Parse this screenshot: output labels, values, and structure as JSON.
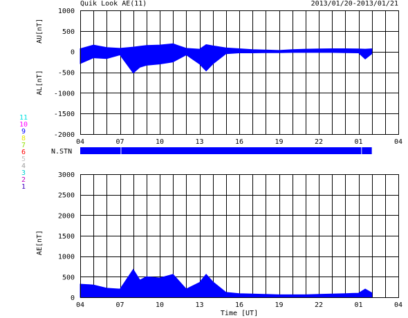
{
  "header": {
    "title": "Quik Look AE(11)",
    "date_range": "2013/01/20-2013/01/21"
  },
  "colors": {
    "data": "#0000ff",
    "frame": "#000000",
    "background": "#ffffff"
  },
  "station_legend": [
    {
      "label": "11",
      "color": "#00e0e0"
    },
    {
      "label": "10",
      "color": "#ff00ff"
    },
    {
      "label": "9",
      "color": "#0000ff"
    },
    {
      "label": "8",
      "color": "#e8e800"
    },
    {
      "label": "7",
      "color": "#90e000"
    },
    {
      "label": "6",
      "color": "#ff0000"
    },
    {
      "label": "5",
      "color": "#c0c0c0"
    },
    {
      "label": "4",
      "color": "#a0a0a0"
    },
    {
      "label": "3",
      "color": "#00d0d0"
    },
    {
      "label": "2",
      "color": "#c000c0"
    },
    {
      "label": "1",
      "color": "#4000c0"
    }
  ],
  "chart_data": [
    {
      "type": "area",
      "name": "AU / AL",
      "ylabel_upper": "AU[nT]",
      "ylabel_lower": "AL[nT]",
      "ylim": [
        -2000,
        1000
      ],
      "yticks": [
        1000,
        500,
        0,
        -500,
        -1000,
        -1500,
        -2000
      ],
      "x_domain_hours": [
        4,
        28
      ],
      "xticks": [
        "04",
        "07",
        "10",
        "13",
        "16",
        "19",
        "22",
        "01",
        "04"
      ],
      "grid": true,
      "x": [
        4,
        5,
        6,
        7,
        8,
        8.5,
        9,
        10,
        11,
        12,
        13,
        13.5,
        14,
        15,
        16,
        17,
        18,
        19,
        20,
        21,
        22,
        23,
        24,
        25,
        25.5,
        26
      ],
      "series": [
        {
          "name": "AU",
          "values": [
            70,
            160,
            100,
            80,
            110,
            130,
            150,
            160,
            190,
            80,
            60,
            170,
            140,
            90,
            70,
            50,
            40,
            30,
            50,
            60,
            65,
            70,
            70,
            65,
            60,
            70
          ]
        },
        {
          "name": "AL",
          "values": [
            -290,
            -150,
            -170,
            -80,
            -520,
            -380,
            -330,
            -300,
            -250,
            -80,
            -300,
            -470,
            -300,
            -50,
            -30,
            -30,
            -25,
            -25,
            -20,
            -20,
            -20,
            -20,
            -25,
            -30,
            -180,
            -50
          ]
        }
      ]
    },
    {
      "type": "bar",
      "name": "N.STN",
      "label": "N.STN",
      "x_domain_hours": [
        4,
        28
      ],
      "segments": [
        [
          4,
          7.05
        ],
        [
          7.1,
          25.2
        ],
        [
          25.25,
          26
        ]
      ]
    },
    {
      "type": "area",
      "name": "AE",
      "ylabel": "AE[nT]",
      "xlabel": "Time [UT]",
      "ylim": [
        0,
        3000
      ],
      "yticks": [
        3000,
        2500,
        2000,
        1500,
        1000,
        500,
        0
      ],
      "x_domain_hours": [
        4,
        28
      ],
      "xticks": [
        "04",
        "07",
        "10",
        "13",
        "16",
        "19",
        "22",
        "01",
        "04"
      ],
      "grid": true,
      "x": [
        4,
        5,
        6,
        7,
        8,
        8.5,
        9,
        10,
        11,
        12,
        13,
        13.5,
        14,
        15,
        16,
        17,
        18,
        19,
        20,
        21,
        22,
        23,
        24,
        25,
        25.5,
        26
      ],
      "values": [
        320,
        300,
        220,
        200,
        680,
        420,
        500,
        470,
        560,
        200,
        360,
        560,
        380,
        120,
        90,
        80,
        70,
        60,
        60,
        60,
        70,
        80,
        90,
        100,
        200,
        110
      ]
    }
  ]
}
